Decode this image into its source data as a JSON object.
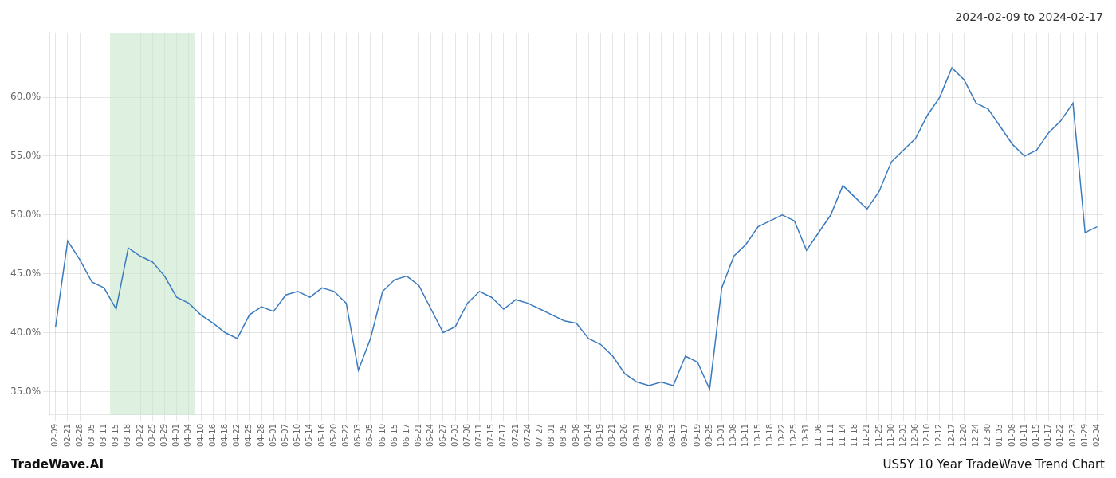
{
  "chart_data": {
    "type": "line",
    "title": "2024-02-09 to 2024-02-17",
    "annotations": [
      "TradeWave.AI",
      "US5Y 10 Year TradeWave Trend Chart"
    ],
    "categories": [
      "02-09",
      "02-21",
      "02-28",
      "03-05",
      "03-11",
      "03-15",
      "03-18",
      "03-22",
      "03-25",
      "03-29",
      "04-01",
      "04-04",
      "04-10",
      "04-16",
      "04-18",
      "04-22",
      "04-25",
      "04-28",
      "05-01",
      "05-07",
      "05-10",
      "05-14",
      "05-16",
      "05-20",
      "05-22",
      "06-03",
      "06-05",
      "06-10",
      "06-15",
      "06-17",
      "06-21",
      "06-24",
      "06-27",
      "07-03",
      "07-08",
      "07-11",
      "07-15",
      "07-17",
      "07-21",
      "07-24",
      "07-27",
      "08-01",
      "08-05",
      "08-08",
      "08-14",
      "08-19",
      "08-21",
      "08-26",
      "09-01",
      "09-05",
      "09-09",
      "09-13",
      "09-17",
      "09-19",
      "09-25",
      "10-01",
      "10-08",
      "10-11",
      "10-15",
      "10-18",
      "10-22",
      "10-25",
      "10-31",
      "11-06",
      "11-11",
      "11-14",
      "11-18",
      "11-21",
      "11-25",
      "11-30",
      "12-03",
      "12-06",
      "12-10",
      "12-12",
      "12-17",
      "12-20",
      "12-24",
      "12-30",
      "01-03",
      "01-08",
      "01-11",
      "01-15",
      "01-17",
      "01-22",
      "01-23",
      "01-29",
      "02-04"
    ],
    "values": [
      40.5,
      47.8,
      46.2,
      44.3,
      43.8,
      42.0,
      47.2,
      46.5,
      46.0,
      44.8,
      43.0,
      42.5,
      41.5,
      40.8,
      40.0,
      39.5,
      41.5,
      42.2,
      41.8,
      43.2,
      43.5,
      43.0,
      43.8,
      43.5,
      42.5,
      36.8,
      39.5,
      43.5,
      44.5,
      44.8,
      44.0,
      42.0,
      40.0,
      40.5,
      42.5,
      43.5,
      43.0,
      42.0,
      42.8,
      42.5,
      42.0,
      41.5,
      41.0,
      40.8,
      39.5,
      39.0,
      38.0,
      36.5,
      35.8,
      35.5,
      35.8,
      35.5,
      38.0,
      37.5,
      35.2,
      43.8,
      46.5,
      47.5,
      49.0,
      49.5,
      50.0,
      49.5,
      47.0,
      48.5,
      50.0,
      52.5,
      51.5,
      50.5,
      52.0,
      54.5,
      55.5,
      56.5,
      58.5,
      60.0,
      62.5,
      61.5,
      59.5,
      59.0,
      57.5,
      56.0,
      55.0,
      55.5,
      57.0,
      58.0,
      59.5,
      48.5,
      49.0
    ],
    "color": "#3a7abf",
    "marker": "none",
    "highlight": {
      "start": "03-15",
      "end": "04-10",
      "color": "#c8e6c9"
    },
    "ylim": [
      33.0,
      65.5
    ],
    "yticks": [
      {
        "value": 35.0,
        "label": "35.0%"
      },
      {
        "value": 40.0,
        "label": "40.0%"
      },
      {
        "value": 45.0,
        "label": "45.0%"
      },
      {
        "value": 50.0,
        "label": "50.0%"
      },
      {
        "value": 55.0,
        "label": "55.0%"
      },
      {
        "value": 60.0,
        "label": "60.0%"
      }
    ],
    "grid": true
  }
}
